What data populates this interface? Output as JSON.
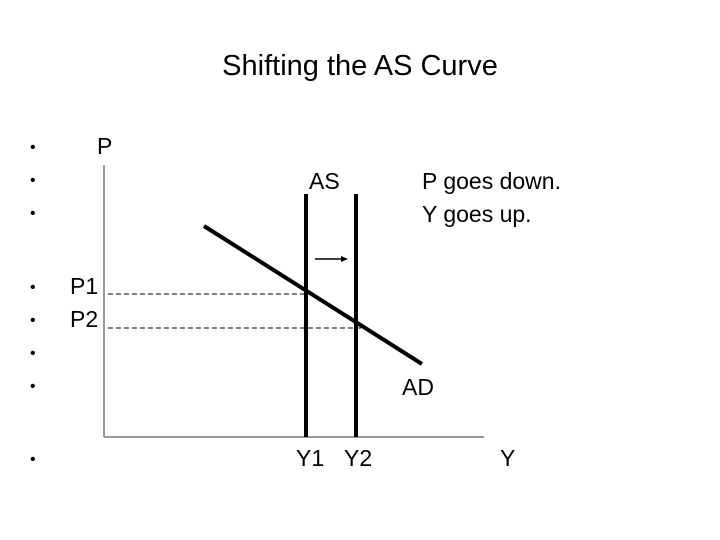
{
  "title": "Shifting the AS Curve",
  "bullets": [
    "•",
    "•",
    "•",
    "•",
    "•",
    "•",
    "•",
    "•"
  ],
  "labels": {
    "p_axis": "P",
    "as_curve": "AS",
    "note_line1": "P goes down.",
    "note_line2": "Y goes up.",
    "p1": "P1",
    "p2": "P2",
    "ad_curve": "AD",
    "y1": "Y1",
    "y2": "Y2",
    "y_axis": "Y"
  },
  "colors": {
    "axis": "#999999",
    "curve": "#000000"
  }
}
